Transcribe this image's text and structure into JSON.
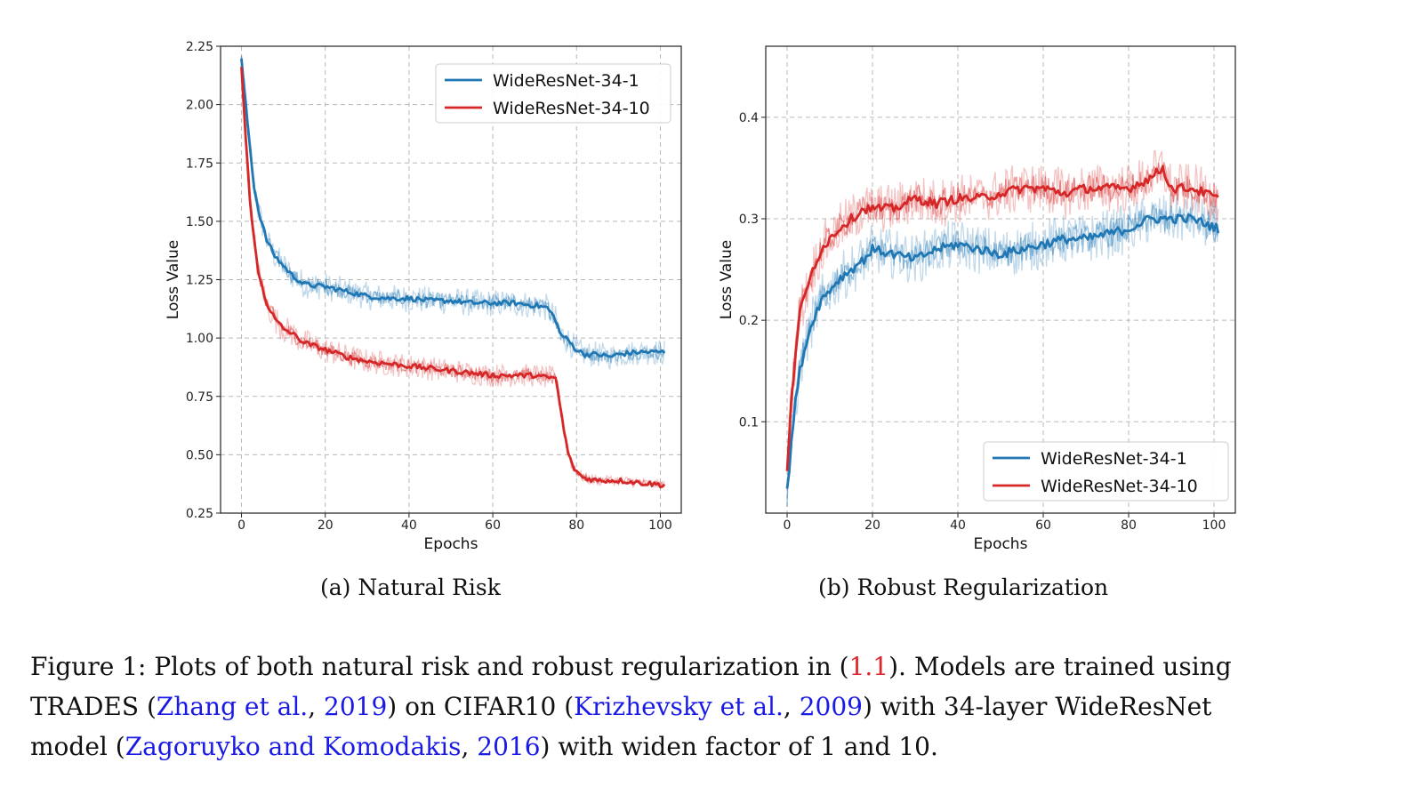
{
  "chart_data": [
    {
      "type": "line",
      "xlabel": "Epochs",
      "ylabel": "Loss Value",
      "xlim": [
        -5,
        105
      ],
      "ylim": [
        0.25,
        2.25
      ],
      "xticks": [
        0,
        20,
        40,
        60,
        80,
        100
      ],
      "yticks": [
        "0.25",
        "0.50",
        "0.75",
        "1.00",
        "1.25",
        "1.50",
        "1.75",
        "2.00",
        "2.25"
      ],
      "grid": true,
      "legend_position": "top-right",
      "series": [
        {
          "name": "WideResNet-34-1",
          "color": "#1f77b4",
          "x": [
            0,
            1,
            2,
            3,
            4,
            6,
            8,
            10,
            12,
            15,
            20,
            25,
            30,
            35,
            40,
            45,
            50,
            55,
            60,
            65,
            70,
            73,
            75,
            76,
            78,
            80,
            82,
            85,
            88,
            90,
            95,
            101
          ],
          "y": [
            2.19,
            2.0,
            1.82,
            1.65,
            1.55,
            1.42,
            1.35,
            1.31,
            1.27,
            1.23,
            1.22,
            1.2,
            1.18,
            1.17,
            1.17,
            1.16,
            1.16,
            1.15,
            1.15,
            1.15,
            1.14,
            1.13,
            1.08,
            1.02,
            0.99,
            0.95,
            0.93,
            0.93,
            0.92,
            0.93,
            0.94,
            0.94
          ]
        },
        {
          "name": "WideResNet-34-10",
          "color": "#d62728",
          "x": [
            0,
            1,
            2,
            3,
            4,
            6,
            8,
            10,
            12,
            15,
            20,
            25,
            30,
            35,
            40,
            45,
            50,
            55,
            60,
            65,
            70,
            73,
            75,
            76,
            77,
            78,
            79,
            80,
            81,
            82,
            85,
            88,
            90,
            95,
            101
          ],
          "y": [
            2.16,
            1.85,
            1.6,
            1.42,
            1.28,
            1.15,
            1.08,
            1.04,
            1.02,
            0.98,
            0.95,
            0.92,
            0.9,
            0.89,
            0.88,
            0.87,
            0.86,
            0.85,
            0.84,
            0.84,
            0.84,
            0.83,
            0.83,
            0.72,
            0.6,
            0.51,
            0.45,
            0.43,
            0.41,
            0.4,
            0.39,
            0.39,
            0.39,
            0.38,
            0.37
          ]
        }
      ]
    },
    {
      "type": "line",
      "xlabel": "Epochs",
      "ylabel": "Loss Value",
      "xlim": [
        -5,
        105
      ],
      "ylim": [
        0.01,
        0.47
      ],
      "xticks": [
        0,
        20,
        40,
        60,
        80,
        100
      ],
      "yticks": [
        "0.1",
        "0.2",
        "0.3",
        "0.4"
      ],
      "grid": true,
      "legend_position": "bottom-right",
      "series": [
        {
          "name": "WideResNet-34-1",
          "color": "#1f77b4",
          "x": [
            0,
            1,
            2,
            3,
            4,
            6,
            8,
            10,
            12,
            15,
            18,
            20,
            25,
            30,
            35,
            40,
            45,
            50,
            55,
            60,
            65,
            70,
            75,
            80,
            85,
            90,
            95,
            101
          ],
          "y": [
            0.03,
            0.08,
            0.12,
            0.15,
            0.17,
            0.2,
            0.22,
            0.23,
            0.24,
            0.25,
            0.26,
            0.27,
            0.265,
            0.26,
            0.27,
            0.275,
            0.27,
            0.265,
            0.27,
            0.275,
            0.28,
            0.28,
            0.285,
            0.29,
            0.3,
            0.3,
            0.3,
            0.29
          ]
        },
        {
          "name": "WideResNet-34-10",
          "color": "#d62728",
          "x": [
            0,
            1,
            2,
            3,
            4,
            6,
            8,
            10,
            12,
            15,
            18,
            20,
            25,
            30,
            35,
            40,
            45,
            50,
            55,
            60,
            65,
            70,
            75,
            80,
            85,
            88,
            90,
            95,
            101
          ],
          "y": [
            0.05,
            0.12,
            0.17,
            0.21,
            0.22,
            0.25,
            0.27,
            0.28,
            0.29,
            0.3,
            0.31,
            0.31,
            0.31,
            0.32,
            0.315,
            0.32,
            0.32,
            0.325,
            0.33,
            0.33,
            0.325,
            0.33,
            0.33,
            0.33,
            0.34,
            0.35,
            0.33,
            0.33,
            0.32
          ]
        }
      ]
    }
  ],
  "subcaptions": {
    "a": "(a) Natural Risk",
    "b": "(b) Robust Regularization"
  },
  "figure_caption": {
    "line1_pre": "Figure 1: Plots of both natural risk and robust regularization in (",
    "eq_ref": "1.1",
    "line1_post": "). Models are trained using",
    "line2_pre": "TRADES (",
    "ref1_authors": "Zhang et al.",
    "ref1_year": "2019",
    "line2_mid": ") on CIFAR10 (",
    "ref2_authors": "Krizhevsky et al.",
    "ref2_year": "2009",
    "line2_post": ") with 34-layer WideResNet",
    "line3_pre": "model (",
    "ref3_authors": "Zagoruyko and Komodakis",
    "ref3_year": "2016",
    "line3_post": ") with widen factor of 1 and 10."
  }
}
